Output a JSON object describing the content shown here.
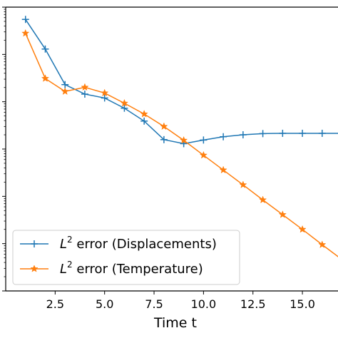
{
  "chart_data": {
    "type": "line",
    "title": "",
    "xlabel": "Time t",
    "ylabel": "",
    "y_scale": "log",
    "x_visible_range": [
      0.0,
      16.8
    ],
    "xlim": [
      0.0,
      16.8
    ],
    "ylim": [
      1e-08,
      0.01
    ],
    "grid": false,
    "legend_position": "lower-left",
    "x_ticks": [
      2.5,
      5.0,
      7.5,
      10.0,
      12.5,
      15.0
    ],
    "x_tick_labels": [
      "2.5",
      "5.0",
      "7.5",
      "10.0",
      "12.5",
      "15.0"
    ],
    "x": [
      1,
      2,
      3,
      4,
      5,
      6,
      7,
      8,
      9,
      10,
      11,
      12,
      13,
      14,
      15,
      16,
      17
    ],
    "series": [
      {
        "name": "$L^2$ error (Displacements)",
        "color": "#1f77b4",
        "marker": "plus",
        "values": [
          0.0055,
          0.0013,
          0.00023,
          0.000145,
          0.00012,
          7.3e-05,
          3.9e-05,
          1.58e-05,
          1.3e-05,
          1.55e-05,
          1.82e-05,
          2e-05,
          2.12e-05,
          2.15e-05,
          2.15e-05,
          2.15e-05,
          2.15e-05
        ]
      },
      {
        "name": "$L^2$ error (Temperature)",
        "color": "#ff7f0e",
        "marker": "star",
        "values": [
          0.0028,
          0.00031,
          0.000165,
          0.000202,
          0.000153,
          9.3e-05,
          5.5e-05,
          3e-05,
          1.53e-05,
          7.4e-06,
          3.6e-06,
          1.75e-06,
          8.4e-07,
          4.1e-07,
          2e-07,
          9.5e-08,
          4.6e-08
        ]
      }
    ]
  },
  "legend": {
    "displacements_suffix": " error (Displacements)",
    "temperature_suffix": " error (Temperature)",
    "base_letter": "L",
    "exponent": "2"
  }
}
